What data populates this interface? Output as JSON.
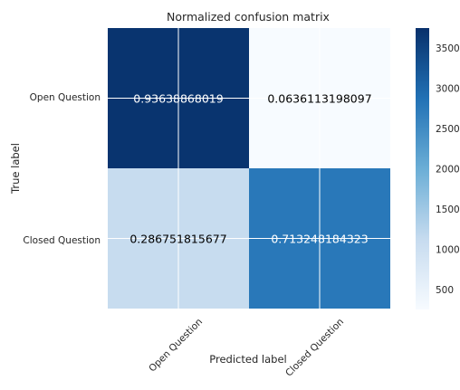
{
  "chart_data": {
    "type": "heatmap",
    "title": "Normalized confusion matrix",
    "xlabel": "Predicted label",
    "ylabel": "True label",
    "row_labels": [
      "Open Question",
      "Closed Question"
    ],
    "col_labels": [
      "Open Question",
      "Closed Question"
    ],
    "cell_labels": [
      [
        "0.93638868019",
        "0.0636113198097"
      ],
      [
        "0.286751815677",
        "0.713248184323"
      ]
    ],
    "counts": [
      [
        3700,
        250
      ],
      [
        1110,
        2780
      ]
    ],
    "colorbar": {
      "min": 250,
      "max": 3750,
      "ticks": [
        "500",
        "1000",
        "1500",
        "2000",
        "2500",
        "3000",
        "3500"
      ],
      "tick_values": [
        500,
        1000,
        1500,
        2000,
        2500,
        3000,
        3500
      ]
    },
    "colors": {
      "low": "#f7fbff",
      "mid1": "#c6dbef",
      "mid2": "#6baed6",
      "mid3": "#2171b5",
      "high": "#08306b"
    },
    "grid": true
  }
}
